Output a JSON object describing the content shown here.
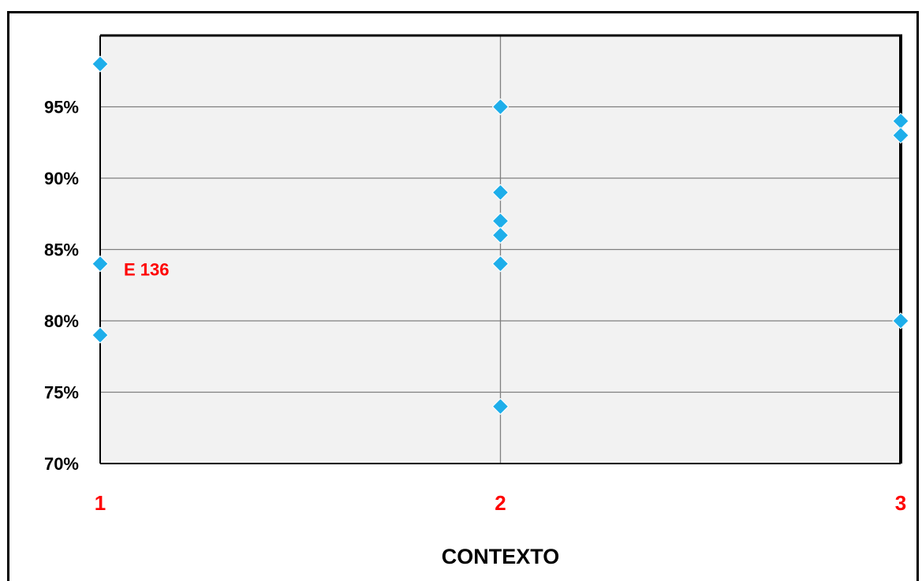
{
  "chart_data": {
    "type": "scatter",
    "title": "",
    "xlabel": "CONTEXTO",
    "ylabel": "",
    "xlim": [
      1,
      3
    ],
    "ylim": [
      70,
      100
    ],
    "x_ticks": [
      "1",
      "2",
      "3"
    ],
    "y_ticks": [
      "70%",
      "75%",
      "80%",
      "85%",
      "90%",
      "95%"
    ],
    "grid": true,
    "series": [
      {
        "color": "#1eaeea",
        "marker": "diamond",
        "points": [
          {
            "x": 1,
            "y": 98
          },
          {
            "x": 1,
            "y": 84
          },
          {
            "x": 1,
            "y": 79
          },
          {
            "x": 2,
            "y": 95
          },
          {
            "x": 2,
            "y": 89
          },
          {
            "x": 2,
            "y": 87
          },
          {
            "x": 2,
            "y": 86
          },
          {
            "x": 2,
            "y": 84
          },
          {
            "x": 2,
            "y": 74
          },
          {
            "x": 3,
            "y": 94
          },
          {
            "x": 3,
            "y": 93
          },
          {
            "x": 3,
            "y": 80
          }
        ]
      }
    ],
    "annotations": [
      {
        "text": "E 136",
        "x": 1,
        "y": 84,
        "color": "#ff0000"
      }
    ]
  }
}
